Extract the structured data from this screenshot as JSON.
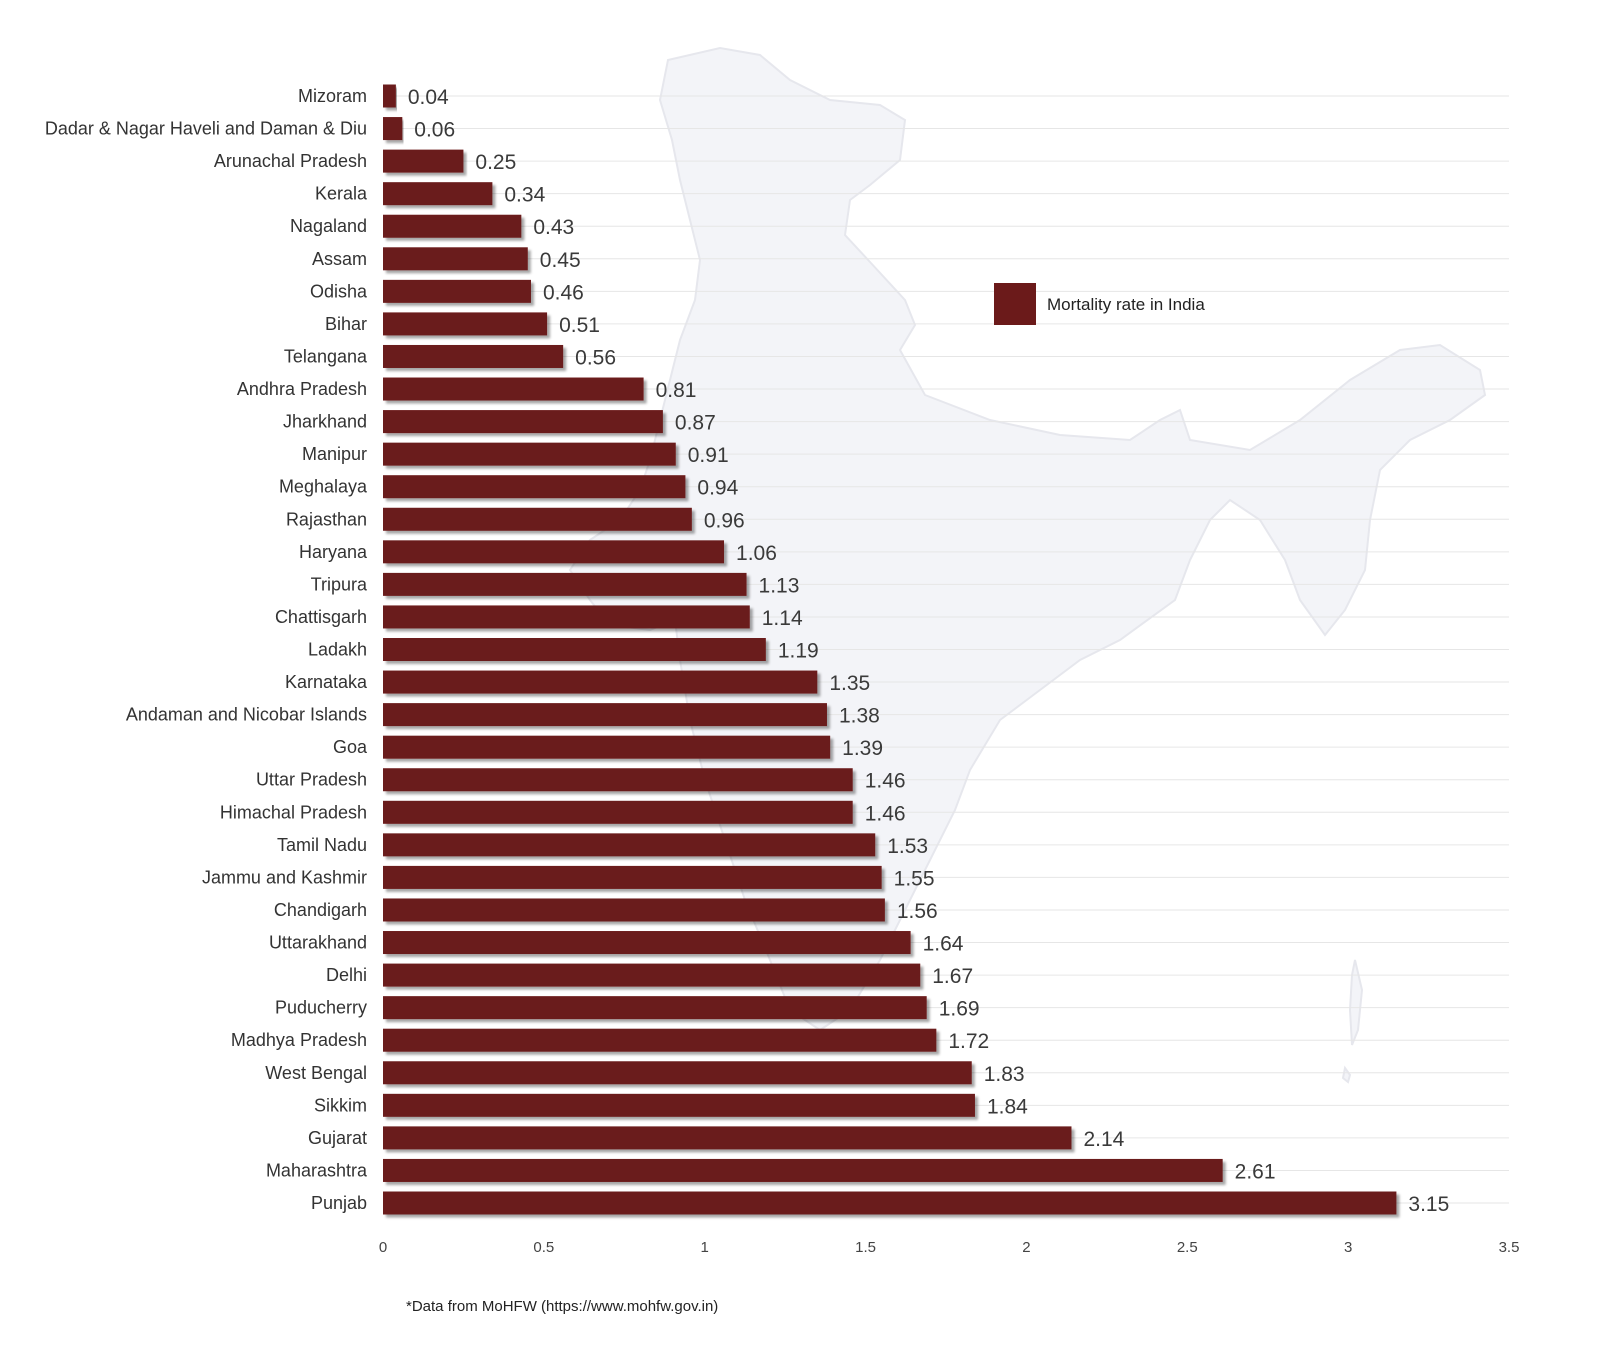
{
  "chart_data": {
    "type": "bar",
    "orientation": "horizontal",
    "categories": [
      "Mizoram",
      "Dadar & Nagar Haveli and Daman & Diu",
      "Arunachal Pradesh",
      "Kerala",
      "Nagaland",
      "Assam",
      "Odisha",
      "Bihar",
      "Telangana",
      "Andhra Pradesh",
      "Jharkhand",
      "Manipur",
      "Meghalaya",
      "Rajasthan",
      "Haryana",
      "Tripura",
      "Chattisgarh",
      "Ladakh",
      "Karnataka",
      "Andaman and Nicobar Islands",
      "Goa",
      "Uttar Pradesh",
      "Himachal Pradesh",
      "Tamil Nadu",
      "Jammu and Kashmir",
      "Chandigarh",
      "Uttarakhand",
      "Delhi",
      "Puducherry",
      "Madhya Pradesh",
      "West Bengal",
      "Sikkim",
      "Gujarat",
      "Maharashtra",
      "Punjab"
    ],
    "series": [
      {
        "name": "Mortality rate in India",
        "values": [
          0.04,
          0.06,
          0.25,
          0.34,
          0.43,
          0.45,
          0.46,
          0.51,
          0.56,
          0.81,
          0.87,
          0.91,
          0.94,
          0.96,
          1.06,
          1.13,
          1.14,
          1.19,
          1.35,
          1.38,
          1.39,
          1.46,
          1.46,
          1.53,
          1.55,
          1.56,
          1.64,
          1.67,
          1.69,
          1.72,
          1.83,
          1.84,
          2.14,
          2.61,
          3.15
        ]
      }
    ],
    "value_labels": [
      "0.04",
      "0.06",
      "0.25",
      "0.34",
      "0.43",
      "0.45",
      "0.46",
      "0.51",
      "0.56",
      "0.81",
      "0.87",
      "0.91",
      "0.94",
      "0.96",
      "1.06",
      "1.13",
      "1.14",
      "1.19",
      "1.35",
      "1.38",
      "1.39",
      "1.46",
      "1.46",
      "1.53",
      "1.55",
      "1.56",
      "1.64",
      "1.67",
      "1.69",
      "1.72",
      "1.83",
      "1.84",
      "2.14",
      "2.61",
      "3.15"
    ],
    "xlim": [
      0,
      3.5
    ],
    "x_ticks": [
      "0",
      "0.5",
      "1",
      "1.5",
      "2",
      "2.5",
      "3",
      "3.5"
    ],
    "grid": true,
    "legend_position": "right",
    "bar_color": "#6b1a1a",
    "background_map": "india-map-silhouette"
  },
  "source_note": "*Data from MoHFW (https://www.mohfw.gov.in)"
}
